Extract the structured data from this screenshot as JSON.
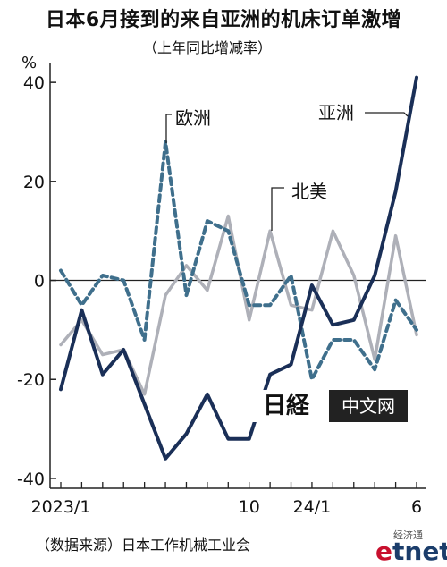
{
  "title": "日本6月接到的来自亚洲的机床订单激增",
  "subtitle": "（上年同比增减率）",
  "unit": "%",
  "source": "（数据来源）日本工作机械工业会",
  "watermark": {
    "logo_text": "日経",
    "text": "中文网"
  },
  "branding": {
    "cn": "经济通",
    "logo": "etnet"
  },
  "colors": {
    "asia": "#1a2f57",
    "europe": "#3f6f8c",
    "north_america": "#aeb0b8",
    "zero_line": "#222222"
  },
  "chart_data": {
    "type": "line",
    "title": "日本6月接到的来自亚洲的机床订单激增",
    "subtitle": "（上年同比增减率）",
    "ylabel": "%",
    "ylim": [
      -42,
      44
    ],
    "yticks": [
      40,
      20,
      0,
      -20,
      -40
    ],
    "ytick_labels": [
      "40",
      "20",
      "0",
      "-20",
      "-40"
    ],
    "xticks": [
      {
        "index": 0,
        "label": "2023/1"
      },
      {
        "index": 9,
        "label": "10"
      },
      {
        "index": 12,
        "label": "24/1"
      },
      {
        "index": 17,
        "label": "6"
      }
    ],
    "x_count": 18,
    "series": [
      {
        "name": "亚洲",
        "style": "solid-dark",
        "values": [
          -22,
          -6,
          -19,
          -14,
          -25,
          -36,
          -31,
          -23,
          -32,
          -32,
          -19,
          -17,
          -1,
          -9,
          -8,
          1,
          18,
          41
        ]
      },
      {
        "name": "欧洲",
        "style": "dashed",
        "values": [
          2,
          -5,
          1,
          0,
          -12,
          28,
          -3,
          12,
          10,
          -5,
          -5,
          1,
          -20,
          -12,
          -12,
          -18,
          -4,
          -10
        ]
      },
      {
        "name": "北美",
        "style": "solid-gray",
        "values": [
          -13,
          -8,
          -15,
          -14,
          -23,
          -3,
          3,
          -2,
          13,
          -8,
          10,
          -5,
          -6,
          10,
          1,
          -16,
          9,
          -11
        ]
      }
    ],
    "series_labels": [
      "亚洲",
      "欧洲",
      "北美"
    ],
    "grid": false,
    "legend": "inline labels near lines"
  }
}
